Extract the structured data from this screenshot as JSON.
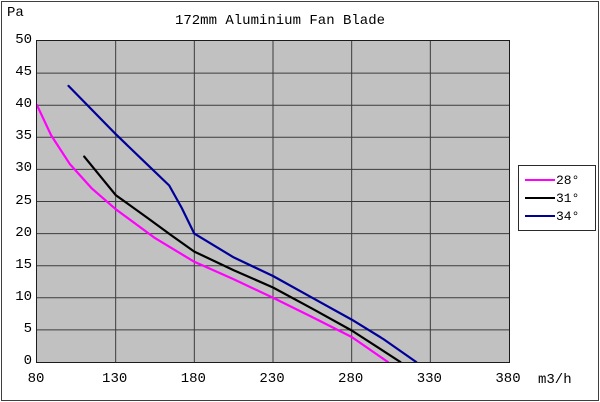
{
  "window": {
    "background": "#ffffff",
    "frame_border_color": "#3f3f3f"
  },
  "chart_data": {
    "type": "line",
    "title": "172mm Aluminium Fan Blade",
    "ylabel": "Pa",
    "xlabel": "m3/h",
    "xlim": [
      80,
      380
    ],
    "ylim": [
      0,
      50
    ],
    "x_ticks": [
      80,
      130,
      180,
      230,
      280,
      330,
      380
    ],
    "y_ticks": [
      0,
      5,
      10,
      15,
      20,
      25,
      30,
      35,
      40,
      45,
      50
    ],
    "grid": true,
    "plot_background": "#c1c1c1",
    "grid_color": "#3c3c3c",
    "plot_border_color": "#1c1c1c",
    "legend_position": "right-outside",
    "series": [
      {
        "name": "28°",
        "color": "#ff00ff",
        "points": [
          [
            80,
            40
          ],
          [
            89,
            35.3
          ],
          [
            101,
            30.8
          ],
          [
            115,
            27
          ],
          [
            130,
            23.8
          ],
          [
            155,
            19.3
          ],
          [
            180,
            15.6
          ],
          [
            205,
            12.9
          ],
          [
            230,
            10
          ],
          [
            255,
            7
          ],
          [
            280,
            3.9
          ],
          [
            303,
            0
          ]
        ]
      },
      {
        "name": "31°",
        "color": "#000000",
        "points": [
          [
            110,
            32
          ],
          [
            130,
            26
          ],
          [
            150,
            22.5
          ],
          [
            165,
            19.8
          ],
          [
            180,
            17.2
          ],
          [
            205,
            14.3
          ],
          [
            230,
            11.6
          ],
          [
            255,
            8.3
          ],
          [
            280,
            4.9
          ],
          [
            311,
            0
          ]
        ]
      },
      {
        "name": "34°",
        "color": "#000099",
        "points": [
          [
            100,
            43
          ],
          [
            130,
            35.5
          ],
          [
            147,
            31.5
          ],
          [
            164,
            27.5
          ],
          [
            172,
            24
          ],
          [
            180,
            20
          ],
          [
            205,
            16.3
          ],
          [
            230,
            13.4
          ],
          [
            255,
            10
          ],
          [
            280,
            6.6
          ],
          [
            300,
            3.6
          ],
          [
            321,
            0
          ]
        ]
      }
    ]
  }
}
